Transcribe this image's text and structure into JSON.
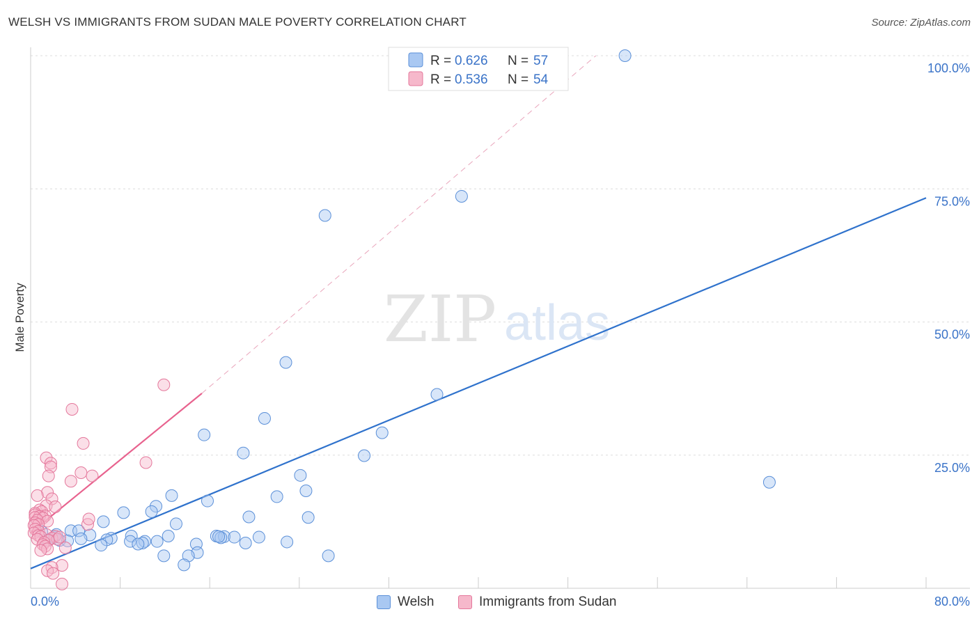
{
  "title": "WELSH VS IMMIGRANTS FROM SUDAN MALE POVERTY CORRELATION CHART",
  "source": "Source: ZipAtlas.com",
  "watermark": {
    "zip": "ZIP",
    "atlas": "atlas"
  },
  "legend_top": {
    "r_label": "R = ",
    "n_label": "N = ",
    "items": [
      {
        "r": "0.626",
        "n": "57"
      },
      {
        "r": "0.536",
        "n": "54"
      }
    ]
  },
  "bottom_legend": [
    {
      "label": "Welsh"
    },
    {
      "label": "Immigrants from Sudan"
    }
  ],
  "colors": {
    "welsh_fill": "#a9c8f2",
    "welsh_stroke": "#5a8fd8",
    "welsh_line": "#2f72cc",
    "sudan_fill": "#f6b8cb",
    "sudan_stroke": "#e4779b",
    "sudan_line": "#e8628e",
    "axis_text": "#3a73c8",
    "grid": "#dcdcdc"
  },
  "chart_data": {
    "type": "scatter",
    "title": "WELSH VS IMMIGRANTS FROM SUDAN MALE POVERTY CORRELATION CHART",
    "xlabel": "",
    "ylabel": "Male Poverty",
    "xlim": [
      0,
      80
    ],
    "ylim": [
      0,
      105
    ],
    "x_tick_labels": [
      "0.0%",
      "80.0%"
    ],
    "y_ticks": [
      25,
      50,
      75,
      100
    ],
    "y_tick_labels": [
      "25.0%",
      "50.0%",
      "75.0%",
      "100.0%"
    ],
    "grid": true,
    "series": [
      {
        "name": "Welsh",
        "R": 0.626,
        "N": 57,
        "trend": {
          "x0": 0,
          "y0": 3.7,
          "x1": 80,
          "y1": 73.3
        },
        "points": [
          [
            53.1,
            100
          ],
          [
            38.5,
            73.6
          ],
          [
            26.3,
            70.0
          ],
          [
            22.8,
            42.4
          ],
          [
            36.3,
            36.4
          ],
          [
            20.9,
            31.9
          ],
          [
            31.4,
            29.2
          ],
          [
            15.5,
            28.8
          ],
          [
            19.0,
            25.4
          ],
          [
            29.8,
            24.9
          ],
          [
            24.1,
            21.2
          ],
          [
            66.0,
            19.9
          ],
          [
            24.6,
            18.3
          ],
          [
            12.6,
            17.4
          ],
          [
            22.0,
            17.2
          ],
          [
            15.8,
            16.4
          ],
          [
            11.2,
            15.4
          ],
          [
            10.8,
            14.4
          ],
          [
            8.3,
            14.2
          ],
          [
            19.5,
            13.4
          ],
          [
            24.8,
            13.3
          ],
          [
            6.5,
            12.5
          ],
          [
            13.0,
            12.1
          ],
          [
            3.6,
            10.8
          ],
          [
            4.3,
            10.8
          ],
          [
            1.0,
            10.6
          ],
          [
            5.3,
            10.0
          ],
          [
            9.0,
            9.8
          ],
          [
            12.3,
            9.8
          ],
          [
            16.6,
            9.8
          ],
          [
            17.3,
            9.7
          ],
          [
            18.2,
            9.6
          ],
          [
            20.4,
            9.6
          ],
          [
            2.1,
            9.6
          ],
          [
            7.2,
            9.4
          ],
          [
            4.5,
            9.3
          ],
          [
            6.8,
            9.1
          ],
          [
            2.6,
            9.0
          ],
          [
            1.5,
            9.0
          ],
          [
            17.0,
            9.5
          ],
          [
            8.9,
            8.8
          ],
          [
            10.2,
            8.8
          ],
          [
            11.3,
            8.8
          ],
          [
            3.3,
            8.9
          ],
          [
            22.9,
            8.7
          ],
          [
            19.2,
            8.5
          ],
          [
            10.0,
            8.5
          ],
          [
            14.8,
            8.3
          ],
          [
            6.3,
            8.1
          ],
          [
            9.6,
            8.3
          ],
          [
            14.9,
            6.7
          ],
          [
            26.6,
            6.1
          ],
          [
            14.1,
            6.1
          ],
          [
            11.9,
            6.1
          ],
          [
            13.7,
            4.4
          ],
          [
            2.3,
            10.1
          ],
          [
            16.8,
            9.7
          ]
        ]
      },
      {
        "name": "Immigrants from Sudan",
        "R": 0.536,
        "N": 54,
        "trend": {
          "x0": 0,
          "y0": 10.4,
          "x1": 15.3,
          "y1": 36.6
        },
        "dashed_extension": {
          "x0": 15.3,
          "y0": 36.6,
          "x1": 50.5,
          "y1": 100
        },
        "points": [
          [
            11.9,
            38.2
          ],
          [
            3.7,
            33.6
          ],
          [
            4.7,
            27.2
          ],
          [
            1.4,
            24.5
          ],
          [
            1.8,
            23.5
          ],
          [
            10.3,
            23.6
          ],
          [
            1.8,
            22.8
          ],
          [
            4.5,
            21.7
          ],
          [
            5.5,
            21.1
          ],
          [
            1.6,
            21.1
          ],
          [
            3.6,
            20.1
          ],
          [
            1.5,
            18.0
          ],
          [
            0.6,
            17.4
          ],
          [
            1.9,
            16.8
          ],
          [
            1.4,
            15.5
          ],
          [
            2.2,
            15.3
          ],
          [
            0.8,
            14.7
          ],
          [
            1.0,
            14.4
          ],
          [
            0.4,
            14.1
          ],
          [
            0.4,
            13.8
          ],
          [
            1.3,
            13.6
          ],
          [
            0.8,
            13.5
          ],
          [
            0.4,
            13.3
          ],
          [
            1.1,
            13.2
          ],
          [
            0.6,
            12.8
          ],
          [
            1.5,
            12.6
          ],
          [
            0.4,
            12.3
          ],
          [
            0.7,
            12.0
          ],
          [
            5.1,
            12.0
          ],
          [
            0.3,
            11.8
          ],
          [
            5.2,
            13.0
          ],
          [
            0.4,
            11.1
          ],
          [
            0.7,
            10.7
          ],
          [
            0.3,
            10.4
          ],
          [
            1.4,
            10.1
          ],
          [
            0.7,
            9.9
          ],
          [
            2.2,
            9.8
          ],
          [
            0.9,
            9.7
          ],
          [
            1.9,
            9.4
          ],
          [
            2.4,
            9.2
          ],
          [
            0.6,
            9.2
          ],
          [
            1.6,
            9.0
          ],
          [
            1.2,
            8.6
          ],
          [
            1.1,
            8.2
          ],
          [
            1.3,
            7.9
          ],
          [
            3.1,
            7.6
          ],
          [
            1.5,
            7.4
          ],
          [
            0.9,
            7.1
          ],
          [
            2.8,
            4.3
          ],
          [
            1.9,
            3.9
          ],
          [
            1.5,
            3.3
          ],
          [
            2.0,
            2.8
          ],
          [
            2.8,
            0.8
          ],
          [
            2.6,
            9.6
          ]
        ]
      }
    ]
  }
}
